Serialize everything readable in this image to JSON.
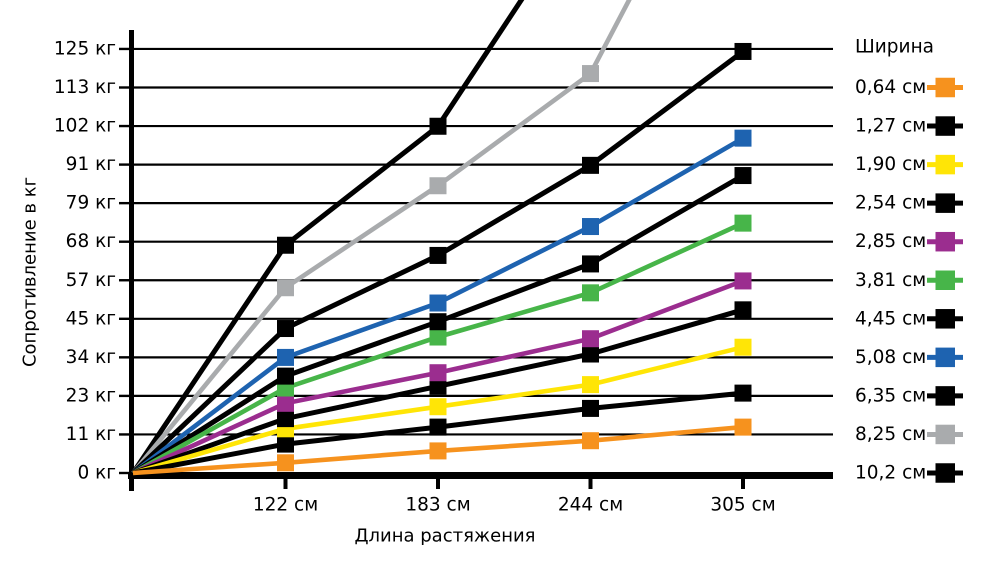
{
  "chart_data": {
    "type": "line",
    "title": "",
    "xlabel": "Длина растяжения",
    "ylabel": "Сопротивление в кг",
    "legend_title": "Ширина",
    "legend_position": "right",
    "grid": "on",
    "x": [
      0,
      122,
      183,
      244,
      305
    ],
    "x_tick_labels": [
      "122 см",
      "183 см",
      "244 см",
      "305 см"
    ],
    "y_ticks": [
      0,
      11,
      23,
      34,
      45,
      57,
      68,
      79,
      91,
      102,
      113,
      125
    ],
    "y_tick_labels": [
      "0 кг",
      "11 кг",
      "23 кг",
      "34 кг",
      "45 кг",
      "57 кг",
      "68 кг",
      "79 кг",
      "91 кг",
      "102 кг",
      "113 кг",
      "125 кг"
    ],
    "units": {
      "x": "см",
      "y": "кг"
    },
    "ylim": [
      0,
      139
    ],
    "series": [
      {
        "name": "0,64 см",
        "color": "#F6921E",
        "values": [
          0,
          3,
          6.5,
          9.5,
          13.5
        ]
      },
      {
        "name": "1,27 см",
        "color": "#000000",
        "values": [
          0,
          8.5,
          13.5,
          19,
          23.5
        ]
      },
      {
        "name": "1,90 см",
        "color": "#FFE506",
        "values": [
          0,
          13,
          19.5,
          26,
          37
        ]
      },
      {
        "name": "2,54 см",
        "color": "#000000",
        "values": [
          0,
          16,
          25.5,
          35,
          48
        ]
      },
      {
        "name": "2,85 см",
        "color": "#9B2D8F",
        "values": [
          0,
          20.5,
          29.5,
          39.5,
          56.5
        ]
      },
      {
        "name": "3,81 см",
        "color": "#47B549",
        "values": [
          0,
          25,
          40,
          53,
          73.5
        ]
      },
      {
        "name": "4,45 см",
        "color": "#000000",
        "values": [
          0,
          28.5,
          44.5,
          61.5,
          87.5
        ]
      },
      {
        "name": "5,08 см",
        "color": "#1E63B0",
        "values": [
          0,
          34,
          50,
          72.5,
          98.5
        ]
      },
      {
        "name": "6,35 см",
        "color": "#000000",
        "values": [
          0,
          42.5,
          64,
          90.5,
          124
        ]
      },
      {
        "name": "8,25 см",
        "color": "#A9ABAD",
        "values": [
          0,
          54.5,
          84.5,
          117.5,
          203
        ],
        "clipped_at_top": true
      },
      {
        "name": "10,2 см",
        "color": "#000000",
        "values": [
          0,
          67,
          102,
          170,
          null
        ],
        "clipped_at_top": true
      }
    ]
  }
}
